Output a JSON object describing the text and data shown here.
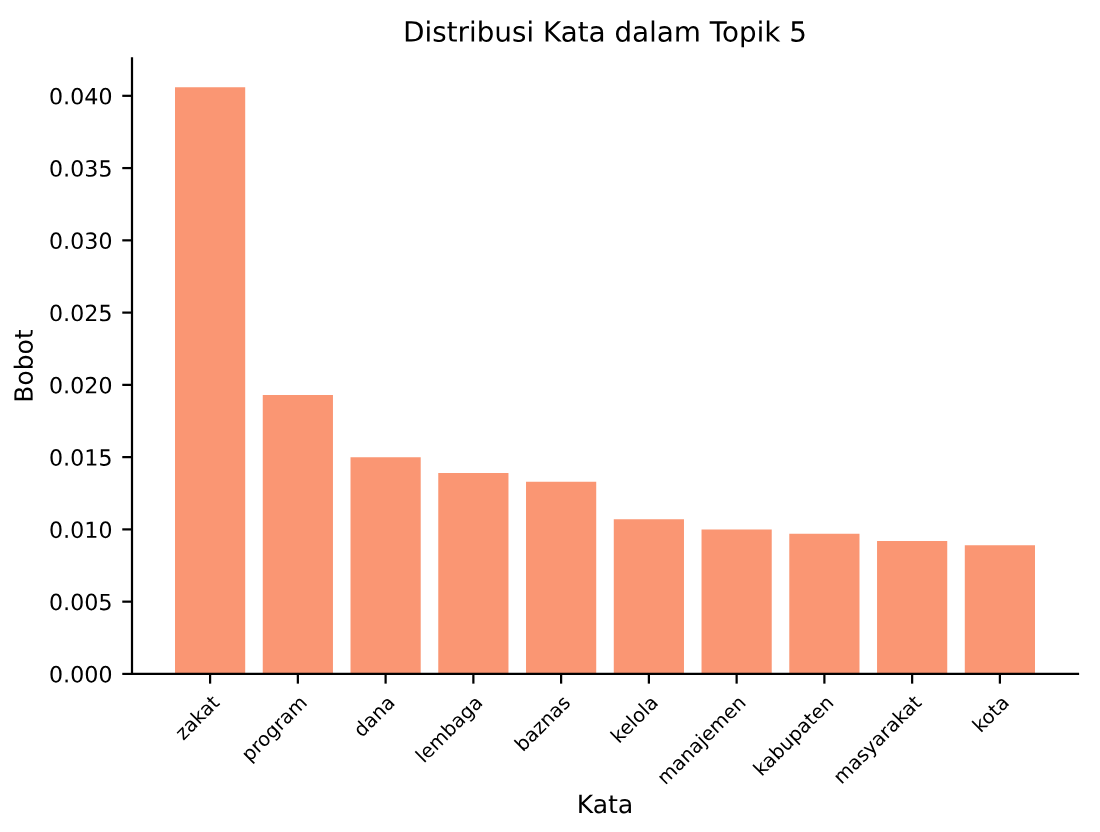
{
  "chart_data": {
    "type": "bar",
    "title": "Distribusi Kata dalam Topik 5",
    "xlabel": "Kata",
    "ylabel": "Bobot",
    "categories": [
      "zakat",
      "program",
      "dana",
      "lembaga",
      "baznas",
      "kelola",
      "manajemen",
      "kabupaten",
      "masyarakat",
      "kota"
    ],
    "values": [
      0.0406,
      0.0193,
      0.015,
      0.0139,
      0.0133,
      0.0107,
      0.01,
      0.0097,
      0.0092,
      0.0089
    ],
    "color": "#fa9673",
    "ylim": [
      0,
      0.0426
    ],
    "yticks": [
      {
        "value": 0,
        "label": "0.000"
      },
      {
        "value": 0.005,
        "label": "0.005"
      },
      {
        "value": 0.01,
        "label": "0.010"
      },
      {
        "value": 0.015,
        "label": "0.015"
      },
      {
        "value": 0.02,
        "label": "0.020"
      },
      {
        "value": 0.025,
        "label": "0.025"
      },
      {
        "value": 0.03,
        "label": "0.030"
      },
      {
        "value": 0.035,
        "label": "0.035"
      },
      {
        "value": 0.04,
        "label": "0.040"
      }
    ],
    "grid": false
  }
}
